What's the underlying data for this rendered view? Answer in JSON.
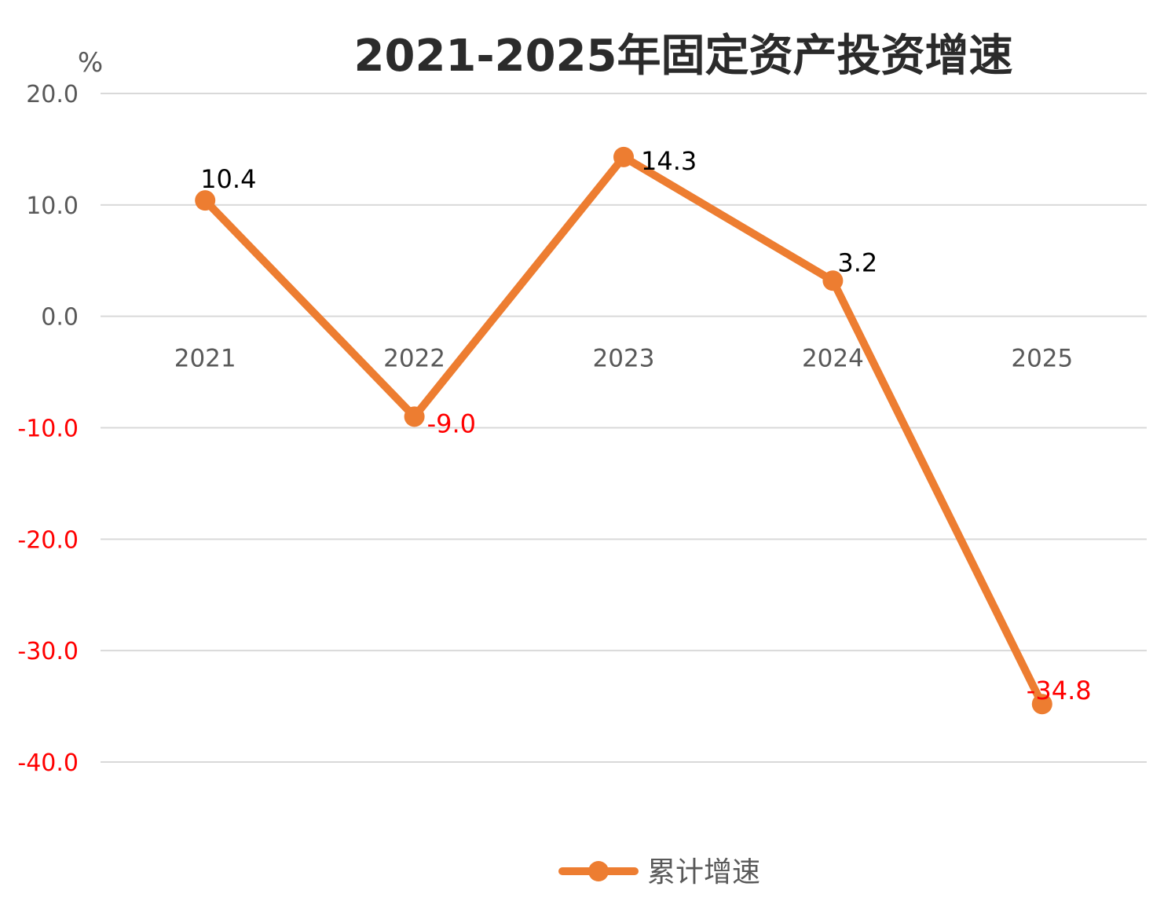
{
  "chart_data": {
    "type": "line",
    "title": "2021-2025年固定资产投资增速",
    "ylabel": "%",
    "xlabel": "",
    "categories": [
      "2021",
      "2022",
      "2023",
      "2024",
      "2025"
    ],
    "series": [
      {
        "name": "累计增速",
        "values": [
          10.4,
          -9.0,
          14.3,
          3.2,
          -34.8
        ],
        "labels": [
          "10.4",
          "-9.0",
          "14.3",
          "3.2",
          "-34.8"
        ],
        "color": "#ed7d31"
      }
    ],
    "ylim": [
      -40,
      20
    ],
    "yticks": [
      20,
      10,
      0,
      -10,
      -20,
      -30,
      -40
    ],
    "ytick_labels": [
      "20.0",
      "10.0",
      "0.0",
      "-10.0",
      "-20.0",
      "-30.0",
      "-40.0"
    ],
    "grid": true,
    "legend": "bottom",
    "colors": {
      "positive_label": "#000000",
      "negative_label": "#ff0000",
      "positive_tick": "#595959",
      "negative_tick": "#ff0000"
    }
  }
}
